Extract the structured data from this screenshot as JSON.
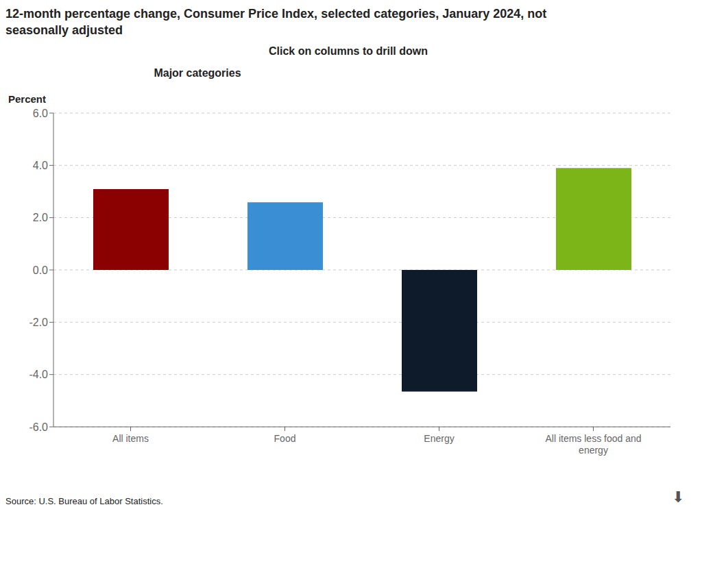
{
  "chart_data": {
    "type": "bar",
    "title": "12-month percentage change, Consumer Price Index, selected categories, January 2024, not\nseasonally adjusted",
    "subtitle": "Click on columns to drill down",
    "ylabel": "Percent",
    "annotations": [
      "Major categories",
      "Source: U.S. Bureau of Labor Statistics.",
      "⬇"
    ],
    "categories": [
      "All items",
      "Food",
      "Energy",
      "All items less food and\nenergy"
    ],
    "values": [
      3.09,
      2.59,
      -4.65,
      3.9
    ],
    "colors": [
      "#8B0000",
      "#3A8FD4",
      "#0D1B2A",
      "#7CB518"
    ],
    "ylim": [
      -6.0,
      6.0
    ],
    "yticks": [
      {
        "value": -6.0,
        "label": "-6.0"
      },
      {
        "value": -4.0,
        "label": "-4.0"
      },
      {
        "value": -2.0,
        "label": "-2.0"
      },
      {
        "value": 0.0,
        "label": "0.0"
      },
      {
        "value": 2.0,
        "label": "2.0"
      },
      {
        "value": 4.0,
        "label": "4.0"
      },
      {
        "value": 6.0,
        "label": "6.0"
      }
    ],
    "grid": true
  }
}
